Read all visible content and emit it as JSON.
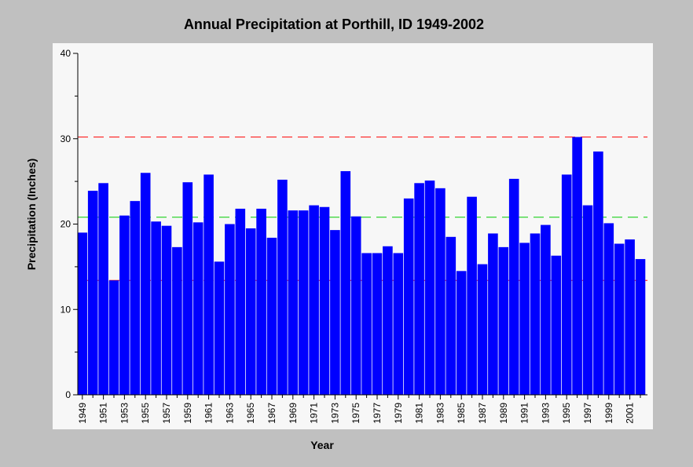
{
  "chart_data": {
    "type": "bar",
    "title": "Annual Precipitation at Porthill, ID 1949-2002",
    "xlabel": "Year",
    "ylabel": "Precipitation (Inches)",
    "ylim": [
      0,
      40
    ],
    "yticks": [
      0,
      10,
      20,
      30,
      40
    ],
    "x_tick_labels": [
      "1949",
      "1951",
      "1953",
      "1955",
      "1957",
      "1959",
      "1961",
      "1963",
      "1965",
      "1967",
      "1969",
      "1971",
      "1973",
      "1975",
      "1977",
      "1979",
      "1981",
      "1983",
      "1985",
      "1987",
      "1989",
      "1991",
      "1993",
      "1995",
      "1997",
      "1999",
      "2001"
    ],
    "categories": [
      "1949",
      "1950",
      "1951",
      "1952",
      "1953",
      "1954",
      "1955",
      "1956",
      "1957",
      "1958",
      "1959",
      "1960",
      "1961",
      "1962",
      "1963",
      "1964",
      "1965",
      "1966",
      "1967",
      "1968",
      "1969",
      "1970",
      "1971",
      "1972",
      "1973",
      "1974",
      "1975",
      "1976",
      "1977",
      "1978",
      "1979",
      "1980",
      "1981",
      "1982",
      "1983",
      "1984",
      "1985",
      "1986",
      "1987",
      "1988",
      "1989",
      "1990",
      "1991",
      "1992",
      "1993",
      "1994",
      "1995",
      "1996",
      "1997",
      "1998",
      "1999",
      "2000",
      "2001",
      "2002"
    ],
    "values": [
      19.0,
      23.9,
      24.8,
      13.4,
      21.0,
      22.7,
      26.0,
      20.3,
      19.8,
      17.3,
      24.9,
      20.2,
      25.8,
      15.6,
      20.0,
      21.8,
      19.5,
      21.8,
      18.4,
      25.2,
      21.6,
      21.6,
      22.2,
      22.0,
      19.3,
      26.2,
      20.9,
      16.6,
      16.6,
      17.4,
      16.6,
      23.0,
      24.8,
      25.1,
      24.2,
      18.5,
      14.5,
      23.2,
      15.3,
      18.9,
      17.3,
      25.3,
      17.8,
      18.9,
      19.9,
      16.3,
      25.8,
      30.2,
      22.2,
      28.5,
      20.1,
      17.7,
      18.2,
      15.9
    ],
    "reference_lines": [
      {
        "value": 30.2,
        "color": "#ff0000"
      },
      {
        "value": 20.8,
        "color": "#00cc00"
      },
      {
        "value": 13.4,
        "color": "#ff0000"
      }
    ],
    "bar_color": "#0000ff",
    "plot_background": "#f7f7f7",
    "page_background": "#c0c0c0",
    "grid": false,
    "legend": "none"
  }
}
